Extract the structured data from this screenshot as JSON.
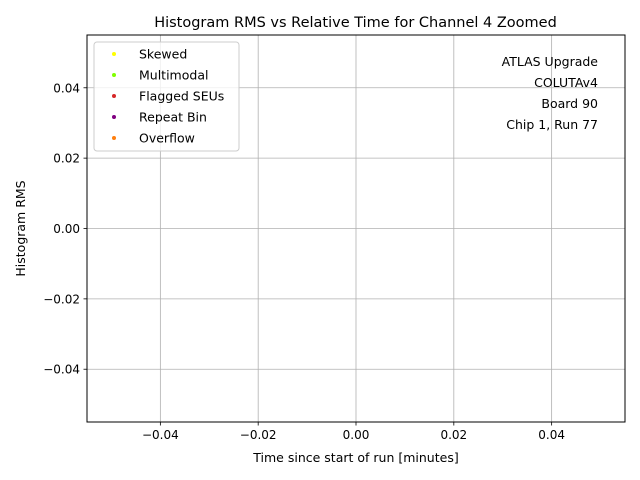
{
  "chart_data": {
    "type": "scatter",
    "title": "Histogram RMS vs Relative Time for Channel 4 Zoomed",
    "xlabel": "Time since start of run [minutes]",
    "ylabel": "Histogram RMS",
    "xlim": [
      -0.055,
      0.055
    ],
    "ylim": [
      -0.055,
      0.055
    ],
    "x_ticks": [
      -0.04,
      -0.02,
      0.0,
      0.02,
      0.04
    ],
    "x_tick_labels": [
      "−0.04",
      "−0.02",
      "0.00",
      "0.02",
      "0.04"
    ],
    "y_ticks": [
      0.04,
      0.02,
      0.0,
      -0.02,
      -0.04
    ],
    "y_tick_labels": [
      "0.04",
      "0.02",
      "0.00",
      "−0.02",
      "−0.04"
    ],
    "grid": true,
    "legend_position": "top-left",
    "series": [
      {
        "name": "Skewed",
        "color": "#ffff00",
        "points": []
      },
      {
        "name": "Multimodal",
        "color": "#80ff00",
        "points": []
      },
      {
        "name": "Flagged SEUs",
        "color": "#d62728",
        "points": []
      },
      {
        "name": "Repeat Bin",
        "color": "#800080",
        "points": []
      },
      {
        "name": "Overflow",
        "color": "#ff7f0e",
        "points": []
      }
    ],
    "annotation": [
      "ATLAS Upgrade",
      "COLUTAv4",
      "Board 90",
      "Chip 1, Run 77"
    ]
  }
}
